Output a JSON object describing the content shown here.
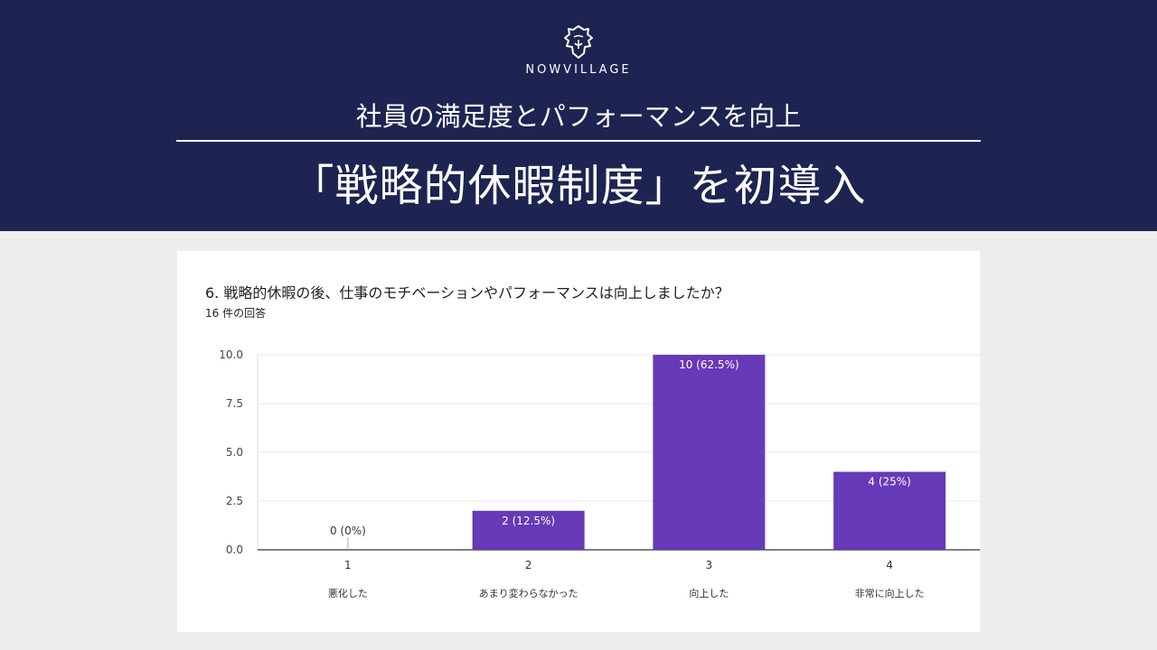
{
  "header": {
    "brand": "NOWVILLAGE",
    "subtitle": "社員の満足度とパフォーマンスを向上",
    "headline": "「戦略的休暇制度」を初導入",
    "logo_icon": "lion-head-icon",
    "background_color": "#1d2451"
  },
  "card": {
    "question": "6. 戦略的休暇の後、仕事のモチベーションやパフォーマンスは向上しましたか？",
    "responses": "16 件の回答"
  },
  "chart_data": {
    "type": "bar",
    "categories": [
      "1",
      "2",
      "3",
      "4"
    ],
    "category_labels": [
      "悪化した",
      "あまり変わらなかった",
      "向上した",
      "非常に向上した"
    ],
    "values": [
      0,
      2,
      10,
      4
    ],
    "data_labels": [
      "0 (0%)",
      "2 (12.5%)",
      "10 (62.5%)",
      "4 (25%)"
    ],
    "yticks": [
      "0.0",
      "2.5",
      "5.0",
      "7.5",
      "10.0"
    ],
    "ylim": [
      0,
      10
    ],
    "grid": true,
    "bar_color": "#673ab7"
  }
}
